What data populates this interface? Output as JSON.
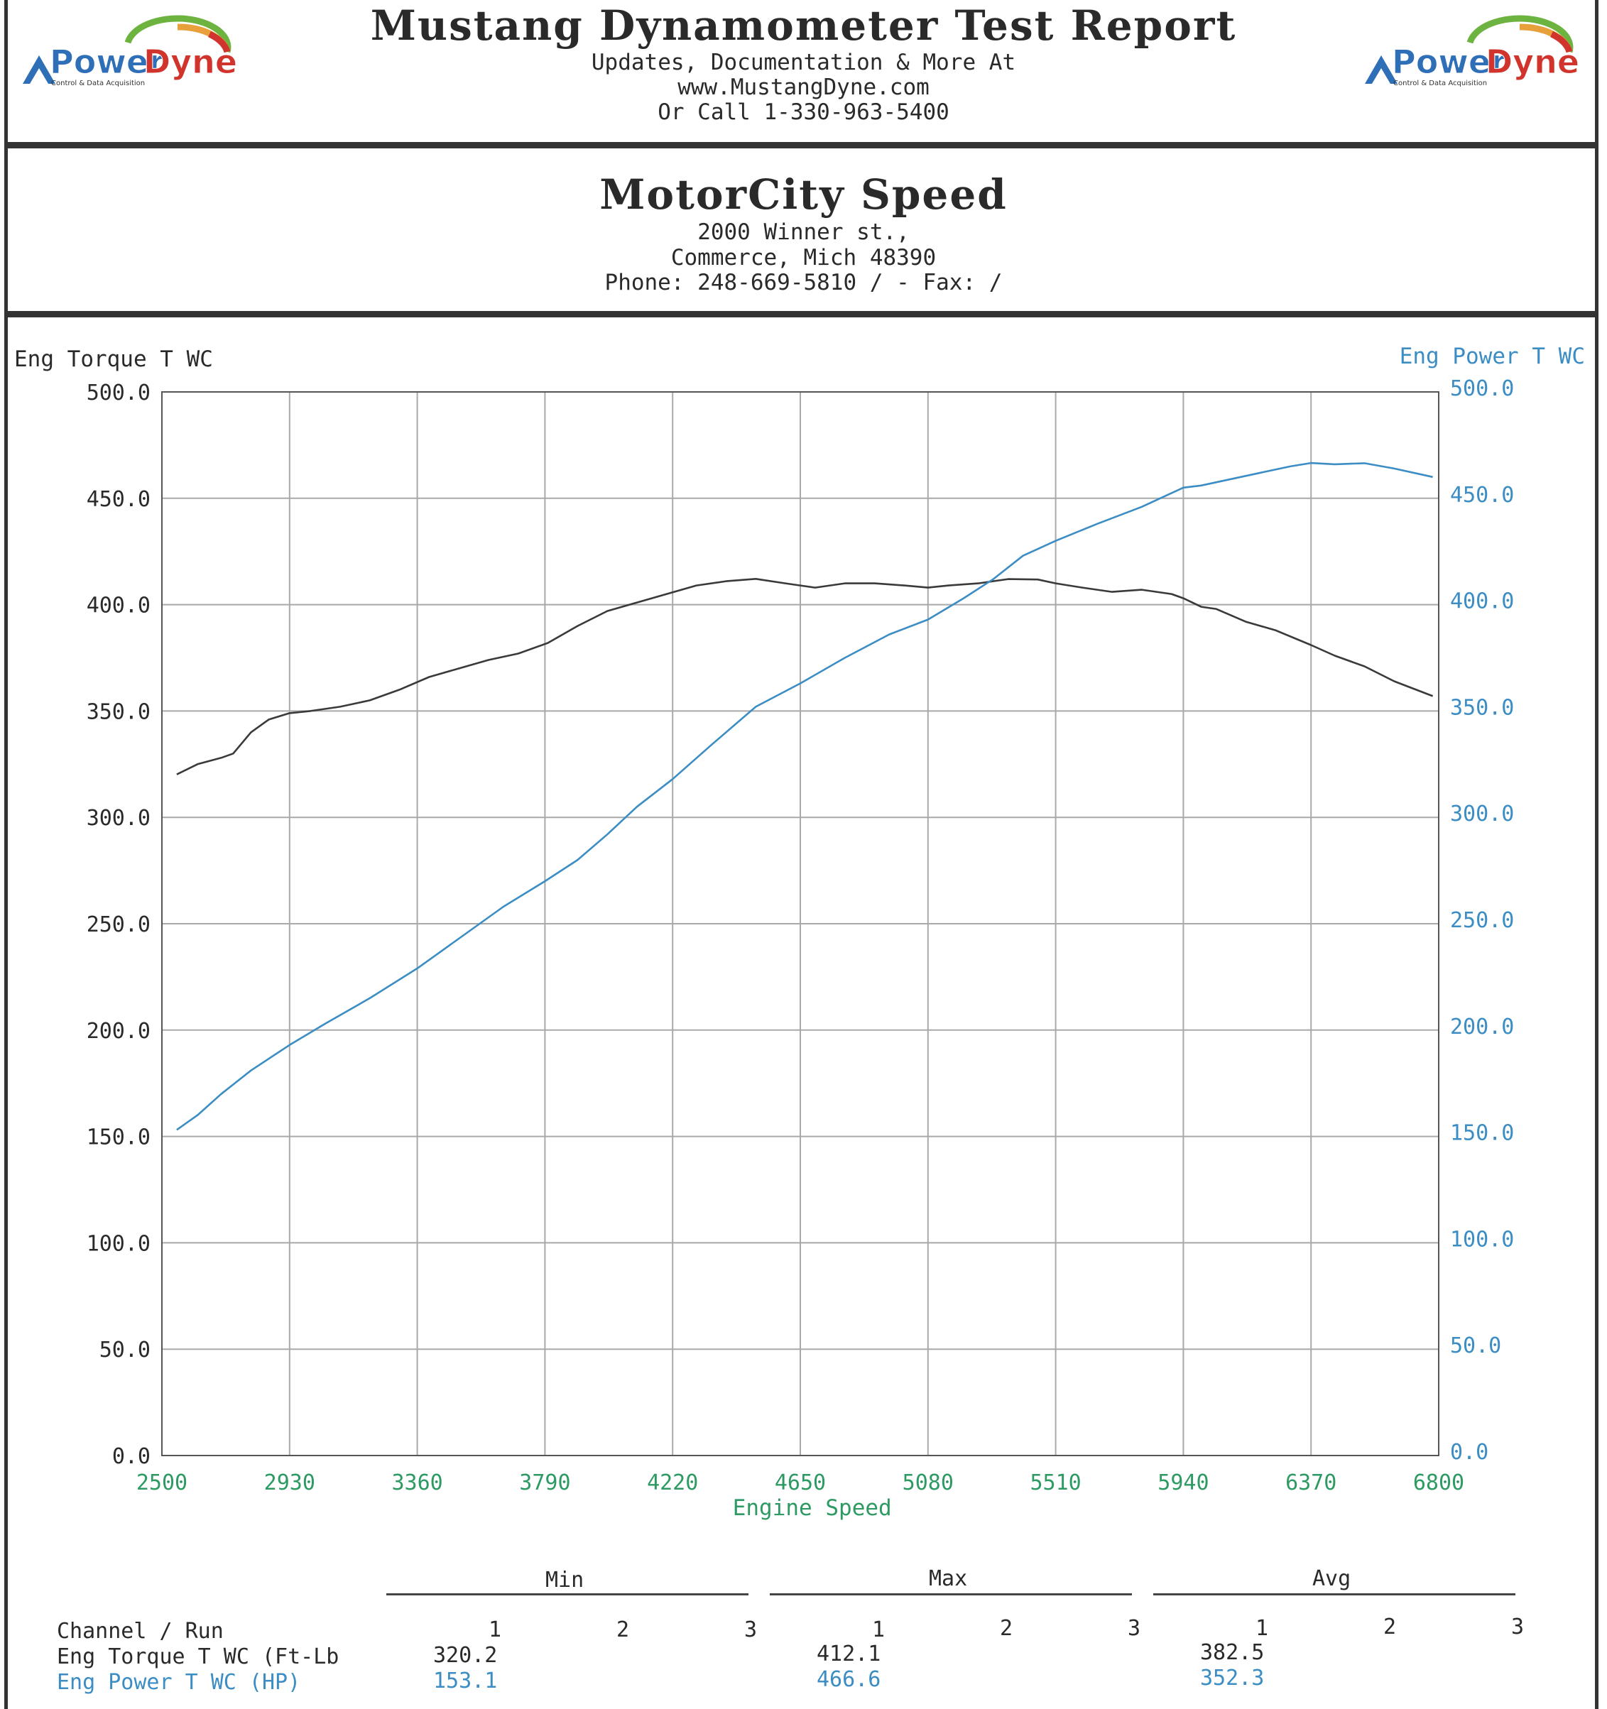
{
  "header": {
    "title": "Mustang Dynamometer Test Report",
    "line1": "Updates, Documentation & More At",
    "line2": "www.MustangDyne.com",
    "line3": "Or Call 1-330-963-5400",
    "logo_text_a": "Power",
    "logo_text_b": "Dyne",
    "logo_tagline": "Control & Data Acquisition"
  },
  "shop": {
    "name": "MotorCity Speed",
    "address1": "2000 Winner st.,",
    "address2": "Commerce, Mich  48390",
    "phone_line": "Phone: 248-669-5810 /  - Fax:  /"
  },
  "colors": {
    "torque": "#3a3a3a",
    "power": "#3b8dc4",
    "x_axis": "#2e9a63",
    "grid": "#a9a9a9"
  },
  "chart_data": {
    "type": "line",
    "xlabel": "Engine Speed",
    "ylabel_left": "Eng Torque T WC",
    "ylabel_right": "Eng Power T WC",
    "xlim": [
      2500,
      6800
    ],
    "ylim_left": [
      0,
      500
    ],
    "ylim_right": [
      0,
      500
    ],
    "x_ticks": [
      2500,
      2930,
      3360,
      3790,
      4220,
      4650,
      5080,
      5510,
      5940,
      6370,
      6800
    ],
    "y_ticks": [
      "0.0",
      "50.0",
      "100.0",
      "150.0",
      "200.0",
      "250.0",
      "300.0",
      "350.0",
      "400.0",
      "450.0",
      "500.0"
    ],
    "grid": true,
    "series": [
      {
        "name": "Eng Torque T WC",
        "axis": "left",
        "x": [
          2550,
          2620,
          2700,
          2740,
          2800,
          2860,
          2930,
          3000,
          3100,
          3200,
          3300,
          3400,
          3500,
          3600,
          3700,
          3800,
          3900,
          4000,
          4100,
          4200,
          4300,
          4400,
          4500,
          4600,
          4650,
          4700,
          4800,
          4900,
          5000,
          5080,
          5150,
          5250,
          5350,
          5450,
          5510,
          5600,
          5700,
          5800,
          5900,
          5940,
          6000,
          6050,
          6150,
          6250,
          6370,
          6450,
          6550,
          6650,
          6780
        ],
        "y": [
          320.2,
          325,
          328,
          330,
          340,
          346,
          349,
          350,
          352,
          355,
          360,
          366,
          370,
          374,
          377,
          382,
          390,
          397,
          401,
          405,
          409,
          411,
          412.1,
          410,
          409,
          408,
          410,
          410,
          409,
          408,
          409,
          410,
          412,
          411.8,
          410,
          408,
          406,
          407,
          405,
          403,
          399,
          398,
          392,
          388,
          381,
          376,
          371,
          364,
          357
        ]
      },
      {
        "name": "Eng Power T WC",
        "axis": "right",
        "x": [
          2550,
          2620,
          2700,
          2800,
          2930,
          3050,
          3200,
          3360,
          3500,
          3650,
          3790,
          3900,
          4000,
          4100,
          4220,
          4350,
          4500,
          4650,
          4800,
          4950,
          5080,
          5200,
          5300,
          5400,
          5510,
          5650,
          5800,
          5940,
          6000,
          6100,
          6200,
          6300,
          6370,
          6450,
          6550,
          6650,
          6780
        ],
        "y": [
          153.1,
          160,
          170,
          181,
          193,
          203,
          215,
          229,
          243,
          258,
          270,
          280,
          292,
          305,
          318,
          334,
          352,
          363,
          375,
          386,
          393,
          403,
          412,
          423,
          430,
          438,
          446,
          455,
          456,
          459,
          462,
          465,
          466.6,
          466,
          466.5,
          464,
          460
        ]
      }
    ]
  },
  "stats": {
    "groups": [
      "Min",
      "Max",
      "Avg"
    ],
    "header_label": "Channel / Run",
    "runs": [
      "1",
      "2",
      "3"
    ],
    "rows": [
      {
        "label": "Eng Torque T WC (Ft-Lb",
        "min": "320.2",
        "max": "412.1",
        "avg": "382.5"
      },
      {
        "label": "Eng Power T WC (HP)",
        "min": "153.1",
        "max": "466.6",
        "avg": "352.3"
      }
    ]
  }
}
